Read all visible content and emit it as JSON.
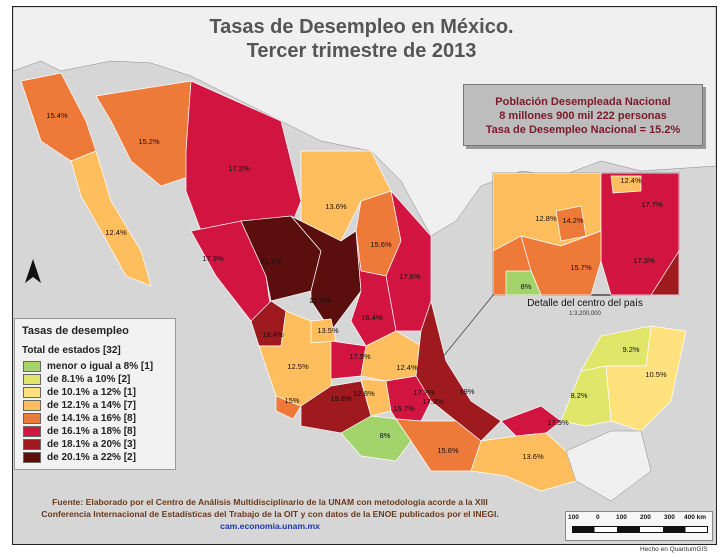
{
  "title": {
    "line1": "Tasas de Desempleo en México.",
    "line2": "Tercer trimestre de 2013"
  },
  "stats": {
    "heading": "Población Desempleada Nacional",
    "people": "8 millones 900 mil 222 personas",
    "rate": "Tasa de Desempleo Nacional = 15.2%"
  },
  "legend": {
    "title": "Tasas de desempleo",
    "subtitle": "Total de estados [32]",
    "items": [
      {
        "label": "menor o igual a 8% [1]",
        "color": "#a3d36b"
      },
      {
        "label": "de   8.1% a 10% [2]",
        "color": "#dfe66a"
      },
      {
        "label": "de 10.1% a 12% [1]",
        "color": "#ffe27e"
      },
      {
        "label": "de 12.1% a 14% [7]",
        "color": "#ffbe5e"
      },
      {
        "label": "de 14.1% a 16% [8]",
        "color": "#ee7a3a"
      },
      {
        "label": "de 16.1% a 18% [8]",
        "color": "#d11440"
      },
      {
        "label": "de 18.1% a 20% [3]",
        "color": "#9e1a1e"
      },
      {
        "label": "de 20.1% a 22% [2]",
        "color": "#5a0f0e"
      }
    ]
  },
  "states": [
    {
      "label": "15.4%",
      "color": "#ee7a3a"
    },
    {
      "label": "15.2%",
      "color": "#ee7a3a"
    },
    {
      "label": "17.2%",
      "color": "#d11440"
    },
    {
      "label": "12.4%",
      "color": "#ffbe5e"
    },
    {
      "label": "13.6%",
      "color": "#ffbe5e"
    },
    {
      "label": "15.6%",
      "color": "#ee7a3a"
    },
    {
      "label": "17.6%",
      "color": "#d11440"
    },
    {
      "label": "21.1%",
      "color": "#5a0f0e"
    },
    {
      "label": "17.9%",
      "color": "#d11440"
    },
    {
      "label": "21.5%",
      "color": "#5a0f0e"
    },
    {
      "label": "16.4%",
      "color": "#d11440"
    },
    {
      "label": "18.4%",
      "color": "#9e1a1e"
    },
    {
      "label": "13.5%",
      "color": "#ffbe5e"
    },
    {
      "label": "12.5%",
      "color": "#ffbe5e"
    },
    {
      "label": "17.5%",
      "color": "#d11440"
    },
    {
      "label": "12.4%",
      "color": "#ffbe5e"
    },
    {
      "label": "15%",
      "color": "#ee7a3a"
    },
    {
      "label": "19.8%",
      "color": "#9e1a1e"
    },
    {
      "label": "12.8%",
      "color": "#ffbe5e"
    },
    {
      "label": "17.7%",
      "color": "#d11440"
    },
    {
      "label": "17.3%",
      "color": "#d11440"
    },
    {
      "label": "15.7%",
      "color": "#ee7a3a"
    },
    {
      "label": "19%",
      "color": "#9e1a1e"
    },
    {
      "label": "8%",
      "color": "#a3d36b"
    },
    {
      "label": "15.6%",
      "color": "#ee7a3a"
    },
    {
      "label": "17.9%",
      "color": "#d11440"
    },
    {
      "label": "13.6%",
      "color": "#ffbe5e"
    },
    {
      "label": "9.2%",
      "color": "#dfe66a"
    },
    {
      "label": "10.5%",
      "color": "#ffe27e"
    },
    {
      "label": "8.2%",
      "color": "#dfe66a"
    }
  ],
  "detail": {
    "title": "Detalle del centro del país",
    "scale": "1:3,200,000",
    "labels": [
      "12.4%",
      "17.7%",
      "12.8%",
      "14.2%",
      "15.7%",
      "17.3%",
      "8%"
    ]
  },
  "scalebar": {
    "labels": [
      "100",
      "0",
      "100",
      "200",
      "300",
      "400 km"
    ]
  },
  "footer": {
    "line1": "Fuente: Elaborado por el Centro de Análisis Multidisciplinario de la UNAM con metodología acorde a la XIII",
    "line2": "Conferencia Internacional de Estadísticas del Trabajo de la OIT y con datos de la ENOE publicados por el INEGI.",
    "url": "cam.economia.unam.mx"
  },
  "credit": "Hecho en QuantumGIS",
  "north_arrow": "north-arrow-icon"
}
